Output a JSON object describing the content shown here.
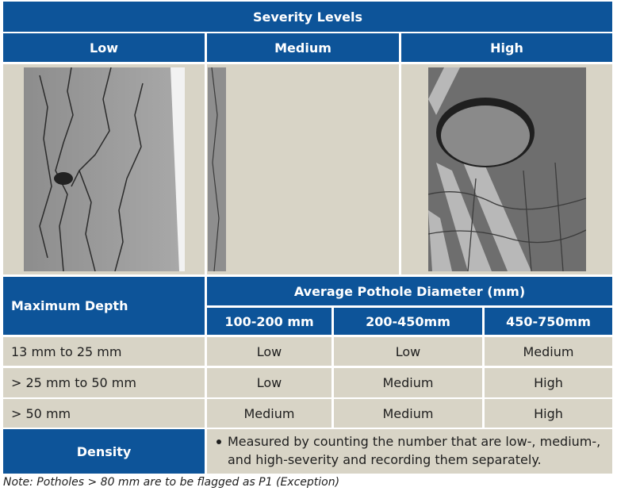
{
  "header": {
    "title": "Severity Levels"
  },
  "severity_columns": [
    "Low",
    "Medium",
    "High"
  ],
  "depth_table": {
    "row_header": "Maximum Depth",
    "column_group": "Average Pothole Diameter (mm)",
    "columns": [
      "100-200 mm",
      "200-450mm",
      "450-750mm"
    ],
    "rows": [
      [
        "13 mm to 25 mm",
        "Low",
        "Low",
        "Medium"
      ],
      [
        "> 25 mm to 50 mm",
        "Low",
        "Medium",
        "High"
      ],
      [
        "> 50 mm",
        "Medium",
        "Medium",
        "High"
      ]
    ]
  },
  "density": {
    "label": "Density",
    "description": "Measured by counting the number that are low-, medium-, and high-severity and recording them separately."
  },
  "note": "Note: Potholes > 80 mm are to be flagged as P1 (Exception)"
}
